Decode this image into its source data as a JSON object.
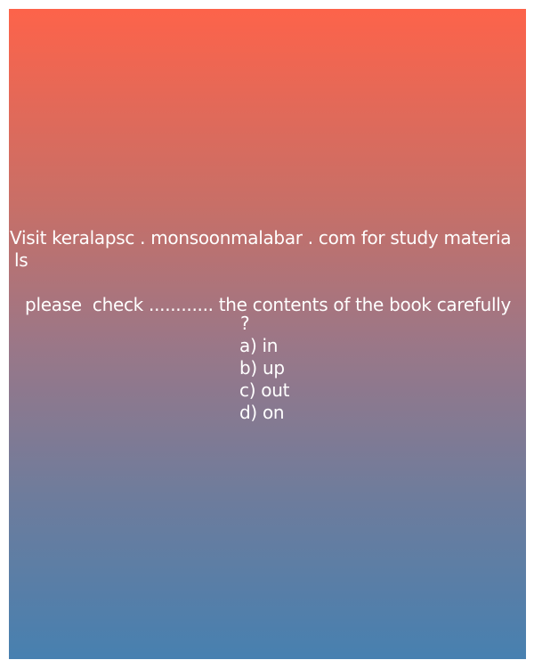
{
  "promo": {
    "line1": "Visit keralapsc . monsoonmalabar . com for study materia",
    "line2": "ls"
  },
  "question": {
    "text": " please  check ............ the contents of the book carefully",
    "mark": "?"
  },
  "options": [
    "a) in",
    "b) up",
    "c) out",
    "d) on"
  ]
}
